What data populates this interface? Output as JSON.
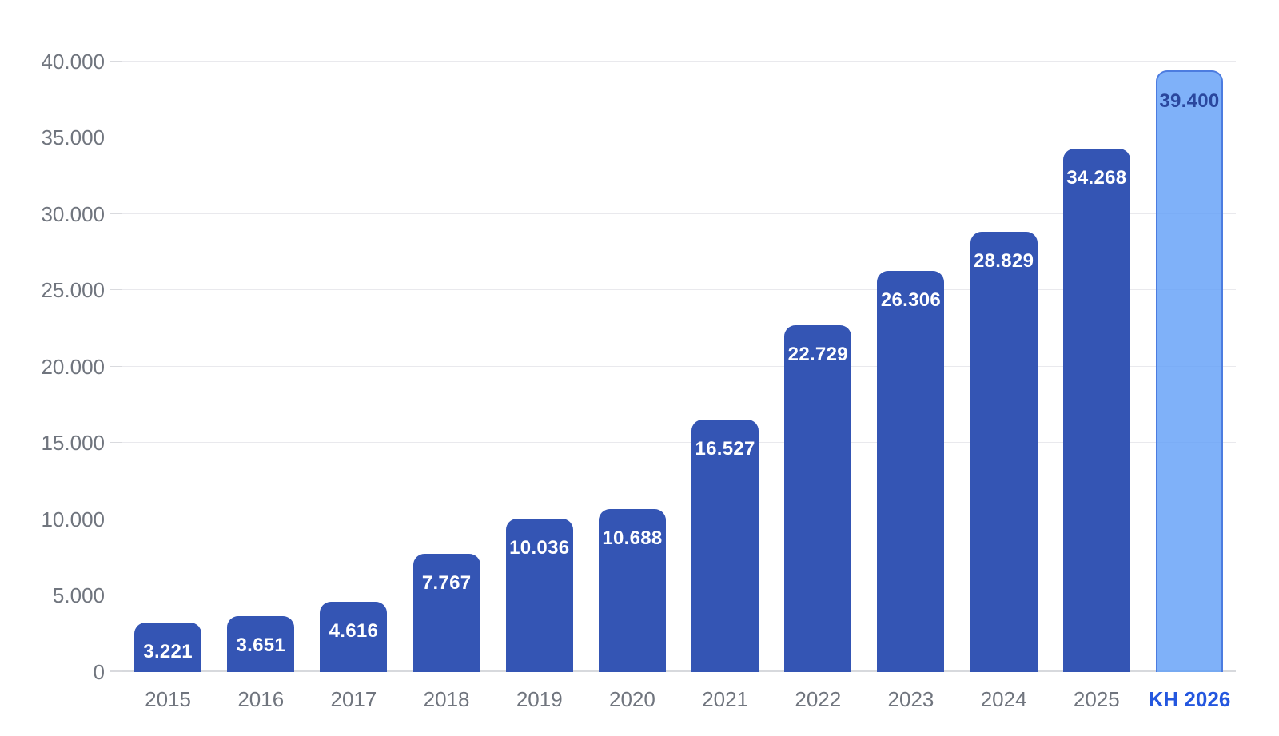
{
  "chart_data": {
    "type": "bar",
    "title": "",
    "xlabel": "",
    "ylabel": "",
    "categories": [
      "2015",
      "2016",
      "2017",
      "2018",
      "2019",
      "2020",
      "2021",
      "2022",
      "2023",
      "2024",
      "2025",
      "KH 2026"
    ],
    "values": [
      3221,
      3651,
      4616,
      7767,
      10036,
      10688,
      16527,
      22729,
      26306,
      28829,
      34268,
      39400
    ],
    "value_labels": [
      "3.221",
      "3.651",
      "4.616",
      "7.767",
      "10.036",
      "10.688",
      "16.527",
      "22.729",
      "26.306",
      "28.829",
      "34.268",
      "39.400"
    ],
    "ylim": [
      0,
      40000
    ],
    "y_ticks": [
      0,
      5000,
      10000,
      15000,
      20000,
      25000,
      30000,
      35000,
      40000
    ],
    "y_tick_labels": [
      "0",
      "5.000",
      "10.000",
      "15.000",
      "20.000",
      "25.000",
      "30.000",
      "35.000",
      "40.000"
    ],
    "grid": true,
    "legend": "none",
    "plan_category_index": 11,
    "colors": {
      "bar_fill": "#3455b4",
      "bar_label": "#ffffff",
      "plan_bar_fill": "rgba(95,158,248,0.8)",
      "plan_bar_border": "#4c7ce0",
      "plan_bar_label": "#2a479e",
      "axis_text": "#70757e",
      "plan_axis_text": "#2457df",
      "gridline": "#e9e9ed",
      "axis_line": "#d9dade"
    }
  }
}
